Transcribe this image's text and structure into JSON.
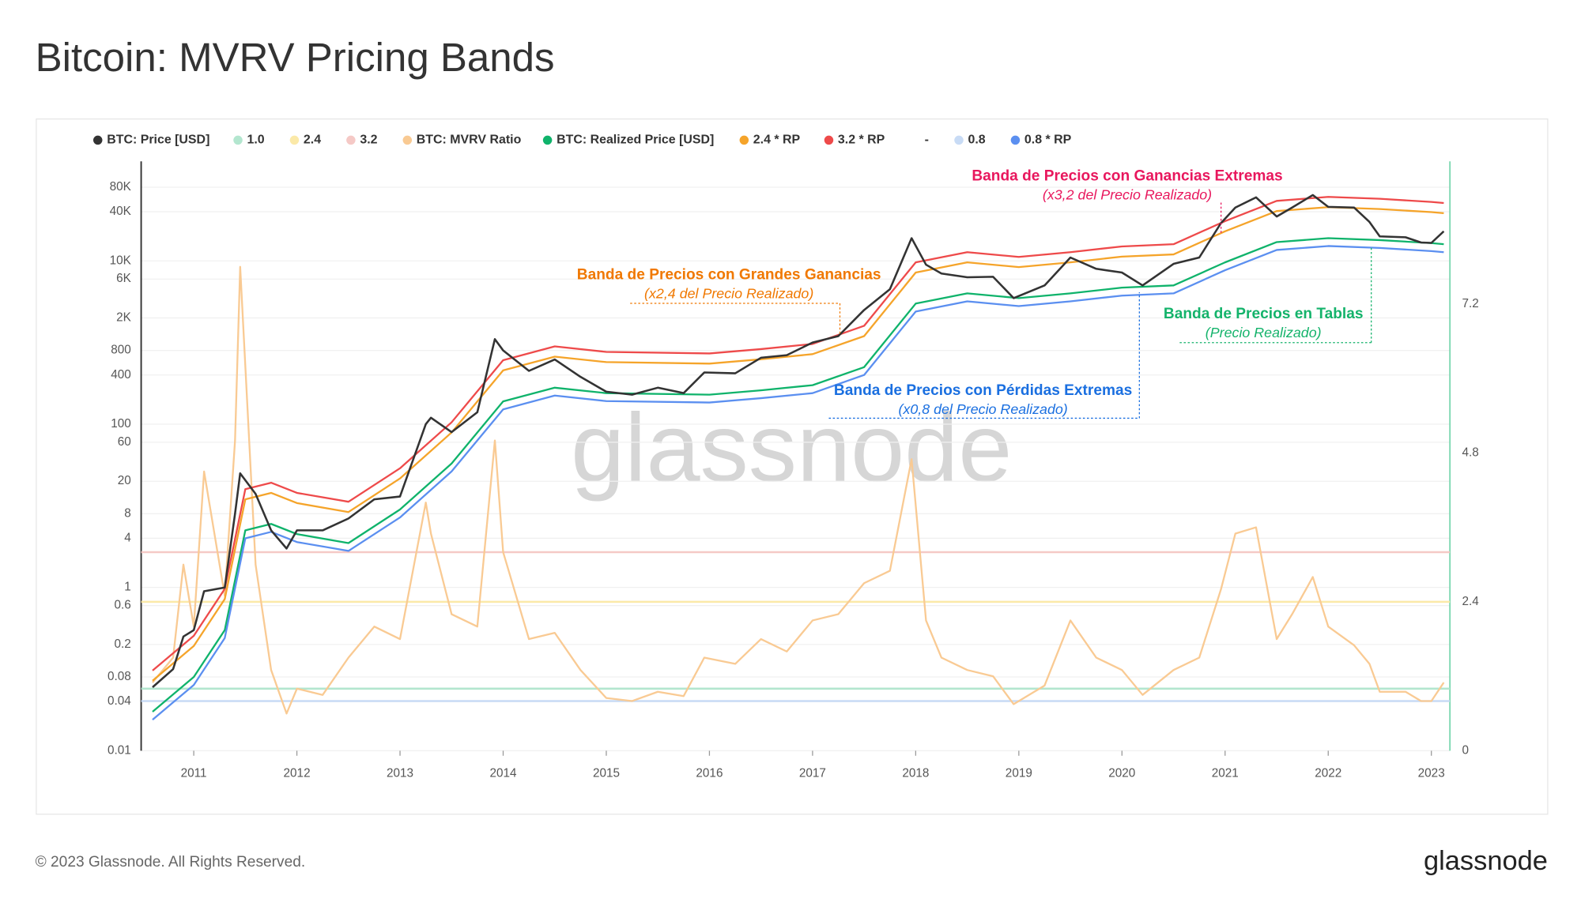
{
  "chart_data": {
    "type": "line",
    "title": "Bitcoin: MVRV Pricing Bands",
    "log_y": true,
    "grid": true,
    "xlim": [
      2010.49,
      2023.18
    ],
    "xticks": [
      2011,
      2012,
      2013,
      2014,
      2015,
      2016,
      2017,
      2018,
      2019,
      2020,
      2021,
      2022,
      2023
    ],
    "ylim": [
      0.01,
      166000
    ],
    "yticks": [
      0.01,
      0.04,
      0.08,
      0.2,
      0.6,
      1,
      4,
      8,
      20,
      60,
      100,
      400,
      800,
      {
        "value": 2000,
        "label": "2K"
      },
      {
        "value": 6000,
        "label": "6K"
      },
      {
        "value": 10000,
        "label": "10K"
      },
      {
        "value": 40000,
        "label": "40K"
      },
      {
        "value": 80000,
        "label": "80K"
      }
    ],
    "y2lim": [
      0,
      9.5
    ],
    "y2ticks": [
      0,
      2.4,
      4.8,
      7.2
    ],
    "series": [
      {
        "name": "BTC: Price [USD]",
        "color": "#333333",
        "kind": "line",
        "x": [
          2010.6,
          2010.8,
          2010.9,
          2011.0,
          2011.1,
          2011.3,
          2011.4,
          2011.45,
          2011.6,
          2011.75,
          2011.9,
          2012.0,
          2012.25,
          2012.5,
          2012.75,
          2013.0,
          2013.25,
          2013.3,
          2013.5,
          2013.75,
          2013.92,
          2014.0,
          2014.25,
          2014.5,
          2014.75,
          2015.0,
          2015.25,
          2015.5,
          2015.75,
          2015.95,
          2016.25,
          2016.5,
          2016.75,
          2017.0,
          2017.25,
          2017.5,
          2017.75,
          2017.96,
          2018.1,
          2018.25,
          2018.5,
          2018.75,
          2018.95,
          2019.25,
          2019.5,
          2019.75,
          2020.0,
          2020.2,
          2020.5,
          2020.75,
          2020.96,
          2021.1,
          2021.3,
          2021.5,
          2021.65,
          2021.85,
          2022.0,
          2022.25,
          2022.4,
          2022.5,
          2022.75,
          2022.9,
          2023.0,
          2023.12
        ],
        "values": [
          0.06,
          0.1,
          0.25,
          0.3,
          0.9,
          1.0,
          8,
          25,
          14,
          5,
          3,
          5,
          5,
          7,
          12,
          13,
          100,
          120,
          80,
          140,
          1100,
          800,
          450,
          620,
          380,
          250,
          230,
          280,
          240,
          430,
          420,
          650,
          700,
          1000,
          1200,
          2500,
          4500,
          19000,
          9000,
          7000,
          6300,
          6400,
          3500,
          5000,
          11000,
          8000,
          7200,
          5000,
          9200,
          11000,
          29000,
          45000,
          60000,
          35000,
          45000,
          64000,
          46000,
          45000,
          30000,
          20000,
          19500,
          16800,
          16600,
          23000
        ]
      },
      {
        "name": "1.0",
        "color": "#b3e6cf",
        "kind": "hline",
        "axis": "y2",
        "value": 1.0
      },
      {
        "name": "2.4",
        "color": "#fbe9a8",
        "kind": "hline",
        "axis": "y2",
        "value": 2.4
      },
      {
        "name": "3.2",
        "color": "#f5c9c6",
        "kind": "hline",
        "axis": "y2",
        "value": 3.2
      },
      {
        "name": "BTC: MVRV Ratio",
        "color": "#f9ca93",
        "kind": "line",
        "axis": "y2",
        "x": [
          2010.6,
          2010.8,
          2010.9,
          2011.0,
          2011.1,
          2011.3,
          2011.4,
          2011.45,
          2011.6,
          2011.75,
          2011.9,
          2012.0,
          2012.25,
          2012.5,
          2012.75,
          2013.0,
          2013.25,
          2013.3,
          2013.5,
          2013.75,
          2013.92,
          2014.0,
          2014.25,
          2014.5,
          2014.75,
          2015.0,
          2015.25,
          2015.5,
          2015.75,
          2015.95,
          2016.25,
          2016.5,
          2016.75,
          2017.0,
          2017.25,
          2017.5,
          2017.75,
          2017.96,
          2018.1,
          2018.25,
          2018.5,
          2018.75,
          2018.95,
          2019.25,
          2019.5,
          2019.75,
          2020.0,
          2020.2,
          2020.5,
          2020.75,
          2020.96,
          2021.1,
          2021.3,
          2021.5,
          2021.65,
          2021.85,
          2022.0,
          2022.25,
          2022.4,
          2022.5,
          2022.75,
          2022.9,
          2023.0,
          2023.12
        ],
        "values": [
          1.1,
          1.5,
          3.0,
          2.0,
          4.5,
          2.5,
          5.0,
          7.8,
          3.0,
          1.3,
          0.6,
          1.0,
          0.9,
          1.5,
          2.0,
          1.8,
          4.0,
          3.5,
          2.2,
          2.0,
          5.0,
          3.2,
          1.8,
          1.9,
          1.3,
          0.85,
          0.8,
          0.95,
          0.88,
          1.5,
          1.4,
          1.8,
          1.6,
          2.1,
          2.2,
          2.7,
          2.9,
          4.7,
          2.1,
          1.5,
          1.3,
          1.2,
          0.75,
          1.05,
          2.1,
          1.5,
          1.3,
          0.9,
          1.3,
          1.5,
          2.6,
          3.5,
          3.6,
          1.8,
          2.2,
          2.8,
          2.0,
          1.7,
          1.4,
          0.95,
          0.95,
          0.8,
          0.8,
          1.1
        ]
      },
      {
        "name": "BTC: Realized Price [USD]",
        "color": "#0fb36b",
        "kind": "line",
        "x": [
          2010.6,
          2011.0,
          2011.3,
          2011.5,
          2011.75,
          2012.0,
          2012.5,
          2013.0,
          2013.5,
          2014.0,
          2014.5,
          2015.0,
          2016.0,
          2016.5,
          2017.0,
          2017.5,
          2018.0,
          2018.5,
          2019.0,
          2019.5,
          2020.0,
          2020.5,
          2021.0,
          2021.5,
          2022.0,
          2022.5,
          2023.0,
          2023.12
        ],
        "values": [
          0.03,
          0.08,
          0.3,
          5,
          6,
          4.5,
          3.5,
          9,
          33,
          190,
          280,
          240,
          230,
          260,
          300,
          500,
          3000,
          4000,
          3500,
          4000,
          4700,
          5000,
          9600,
          17000,
          19000,
          18000,
          16500,
          16000
        ]
      },
      {
        "name": "2.4 * RP",
        "color": "#f5a42a",
        "kind": "line",
        "x": [
          2010.6,
          2011.0,
          2011.3,
          2011.5,
          2011.75,
          2012.0,
          2012.5,
          2013.0,
          2013.5,
          2014.0,
          2014.5,
          2015.0,
          2016.0,
          2016.5,
          2017.0,
          2017.5,
          2018.0,
          2018.5,
          2019.0,
          2019.5,
          2020.0,
          2020.5,
          2021.0,
          2021.5,
          2022.0,
          2022.5,
          2023.0,
          2023.12
        ],
        "values": [
          0.072,
          0.192,
          0.72,
          12,
          14.4,
          10.8,
          8.4,
          21.6,
          79.2,
          456,
          672,
          576,
          552,
          624,
          720,
          1200,
          7200,
          9600,
          8400,
          9600,
          11280,
          12000,
          23040,
          40800,
          45600,
          43200,
          39600,
          38400
        ]
      },
      {
        "name": "3.2 * RP",
        "color": "#ee4a4a",
        "kind": "line",
        "x": [
          2010.6,
          2011.0,
          2011.3,
          2011.5,
          2011.75,
          2012.0,
          2012.5,
          2013.0,
          2013.5,
          2014.0,
          2014.5,
          2015.0,
          2016.0,
          2016.5,
          2017.0,
          2017.5,
          2018.0,
          2018.5,
          2019.0,
          2019.5,
          2020.0,
          2020.5,
          2021.0,
          2021.5,
          2022.0,
          2022.5,
          2023.0,
          2023.12
        ],
        "values": [
          0.096,
          0.256,
          0.96,
          16,
          19.2,
          14.4,
          11.2,
          28.8,
          105.6,
          608,
          896,
          768,
          736,
          832,
          960,
          1600,
          9600,
          12800,
          11200,
          12800,
          15040,
          16000,
          30720,
          54400,
          60800,
          57600,
          52800,
          51200
        ]
      },
      {
        "name": "-",
        "kind": "none"
      },
      {
        "name": "0.8",
        "color": "#c8dbf5",
        "kind": "hline",
        "axis": "y2",
        "value": 0.8
      },
      {
        "name": "0.8 * RP",
        "color": "#5b8ff0",
        "kind": "line",
        "x": [
          2010.6,
          2011.0,
          2011.3,
          2011.5,
          2011.75,
          2012.0,
          2012.5,
          2013.0,
          2013.5,
          2014.0,
          2014.5,
          2015.0,
          2016.0,
          2016.5,
          2017.0,
          2017.5,
          2018.0,
          2018.5,
          2019.0,
          2019.5,
          2020.0,
          2020.5,
          2021.0,
          2021.5,
          2022.0,
          2022.5,
          2023.0,
          2023.12
        ],
        "values": [
          0.024,
          0.064,
          0.24,
          4,
          4.8,
          3.6,
          2.8,
          7.2,
          26.4,
          152,
          224,
          192,
          184,
          208,
          240,
          400,
          2400,
          3200,
          2800,
          3200,
          3760,
          4000,
          7680,
          13600,
          15200,
          14400,
          13200,
          12800
        ]
      }
    ],
    "annotations": [
      {
        "title": "Banda de Precios con Ganancias Extremas",
        "subtitle": "(x3,2 del Precio Realizado)",
        "color": "#e8175d"
      },
      {
        "title": "Banda de Precios con Grandes Ganancias",
        "subtitle": "(x2,4 del Precio Realizado)",
        "color": "#f07800"
      },
      {
        "title": "Banda de Precios en Tablas",
        "subtitle": "(Precio Realizado)",
        "color": "#14b36b"
      },
      {
        "title": "Banda de Precios con Pérdidas Extremas",
        "subtitle": "(x0,8 del Precio Realizado)",
        "color": "#1a6fe0"
      }
    ],
    "watermark": "glassnode"
  },
  "footer": {
    "copyright": "© 2023 Glassnode. All Rights Reserved.",
    "logo": "glassnode"
  }
}
